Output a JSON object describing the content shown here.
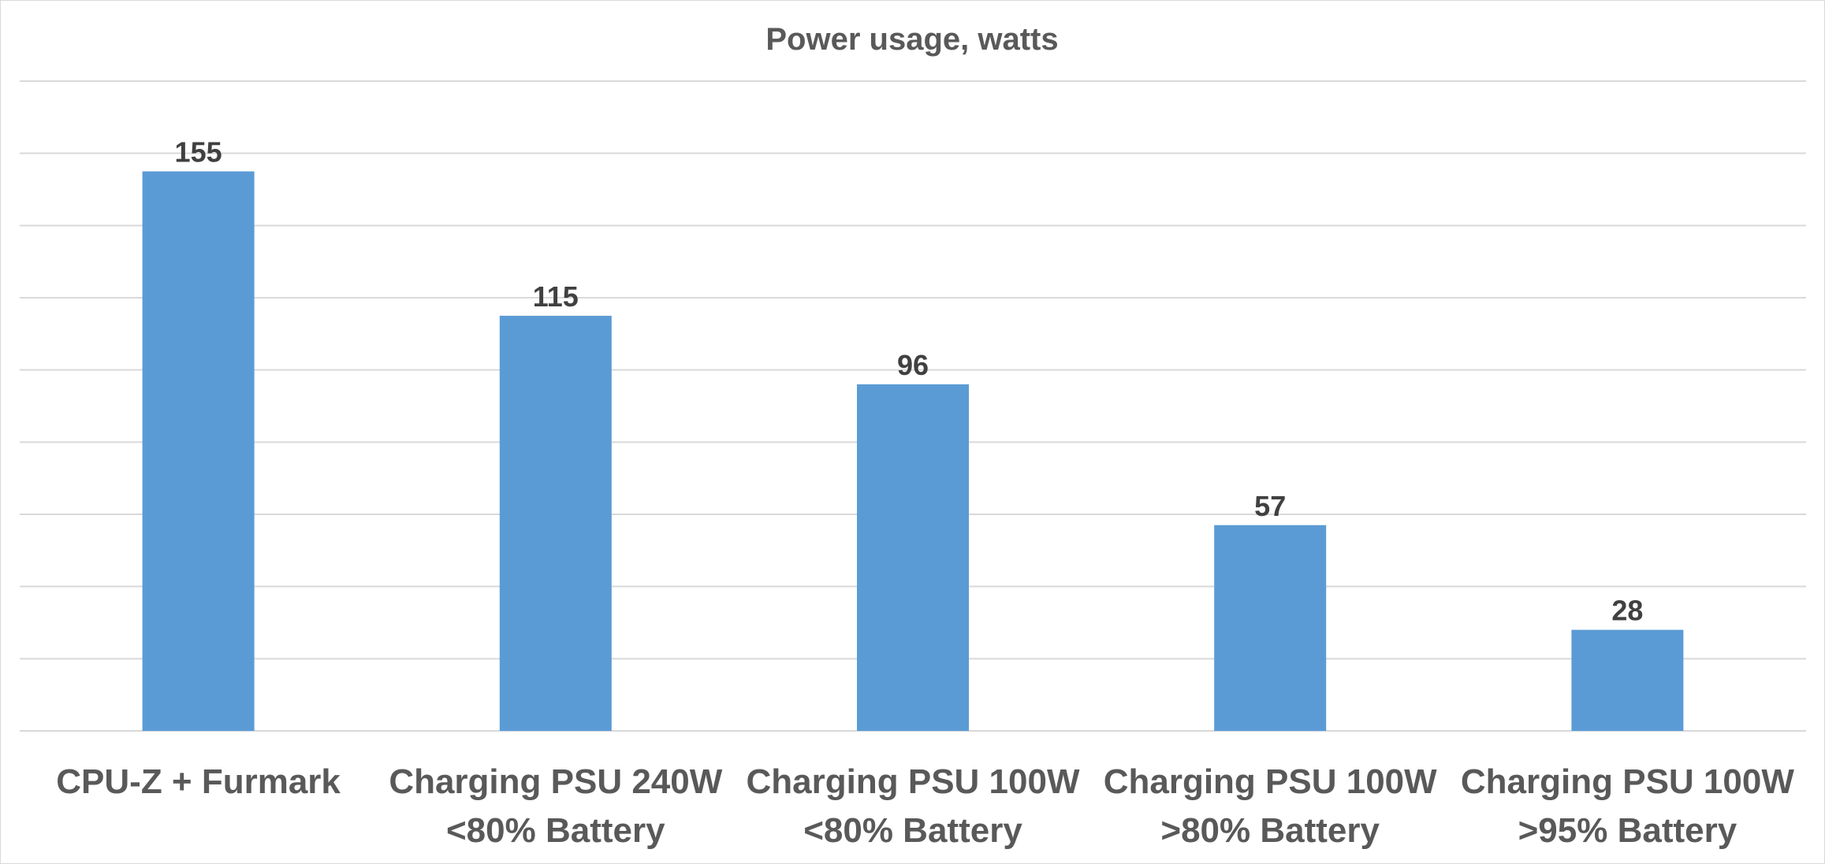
{
  "chart_data": {
    "type": "bar",
    "title": "Power usage, watts",
    "xlabel": "",
    "ylabel": "",
    "categories": [
      [
        "CPU-Z + Furmark"
      ],
      [
        "Charging PSU 240W",
        "<80% Battery"
      ],
      [
        "Charging PSU 100W",
        "<80% Battery"
      ],
      [
        "Charging PSU 100W",
        ">80% Battery"
      ],
      [
        "Charging PSU 100W",
        ">95% Battery"
      ]
    ],
    "values": [
      155,
      115,
      96,
      57,
      28
    ],
    "ylim": [
      0,
      180
    ],
    "y_tick_step": 20,
    "y_tick_labels_shown": false,
    "grid": true,
    "legend": "none",
    "bar_color": "#5b9bd5"
  }
}
